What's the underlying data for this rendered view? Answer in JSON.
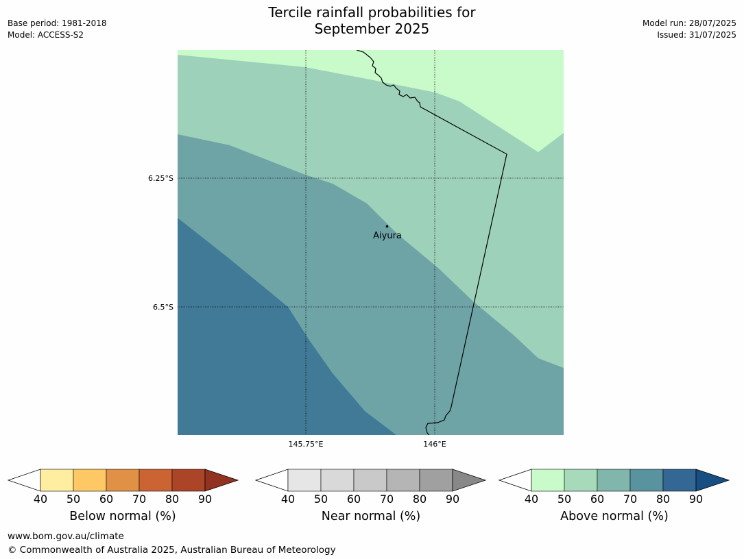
{
  "header": {
    "title_line1": "Tercile rainfall probabilities for",
    "title_line2": "September 2025",
    "base_period": "Base period: 1981-2018",
    "model": "Model: ACCESS-S2",
    "model_run": "Model run: 28/07/2025",
    "issued": "Issued: 31/07/2025"
  },
  "map": {
    "lat_ticks": [
      "6.25°S",
      "6.5°S"
    ],
    "lon_ticks": [
      "145.75°E",
      "146°E"
    ],
    "place": "Aiyura",
    "fill_colors": {
      "band_40_50": "#c8fbc9",
      "band_50_60": "#9ed1b9",
      "band_60_70": "#6fa4a7",
      "band_70_80": "#417a97"
    }
  },
  "colorbars": [
    {
      "label": "Below normal (%)",
      "ticks": [
        "40",
        "50",
        "60",
        "70",
        "80",
        "90"
      ],
      "colors": [
        "#ffeda0",
        "#fec965",
        "#e09145",
        "#cb6333",
        "#ac4527",
        "#923220"
      ]
    },
    {
      "label": "Near normal (%)",
      "ticks": [
        "40",
        "50",
        "60",
        "70",
        "80",
        "90"
      ],
      "colors": [
        "#e6e6e6",
        "#d9d9d9",
        "#c9c9c9",
        "#b5b5b5",
        "#a0a0a0",
        "#888888"
      ]
    },
    {
      "label": "Above normal (%)",
      "ticks": [
        "40",
        "50",
        "60",
        "70",
        "80",
        "90"
      ],
      "colors": [
        "#c8fbc9",
        "#a6dabb",
        "#80b6ac",
        "#5a93a0",
        "#336894",
        "#174f83"
      ]
    }
  ],
  "footer": {
    "website": "www.bom.gov.au/climate",
    "copyright": "© Commonwealth of Australia 2025, Australian Bureau of Meteorology"
  }
}
